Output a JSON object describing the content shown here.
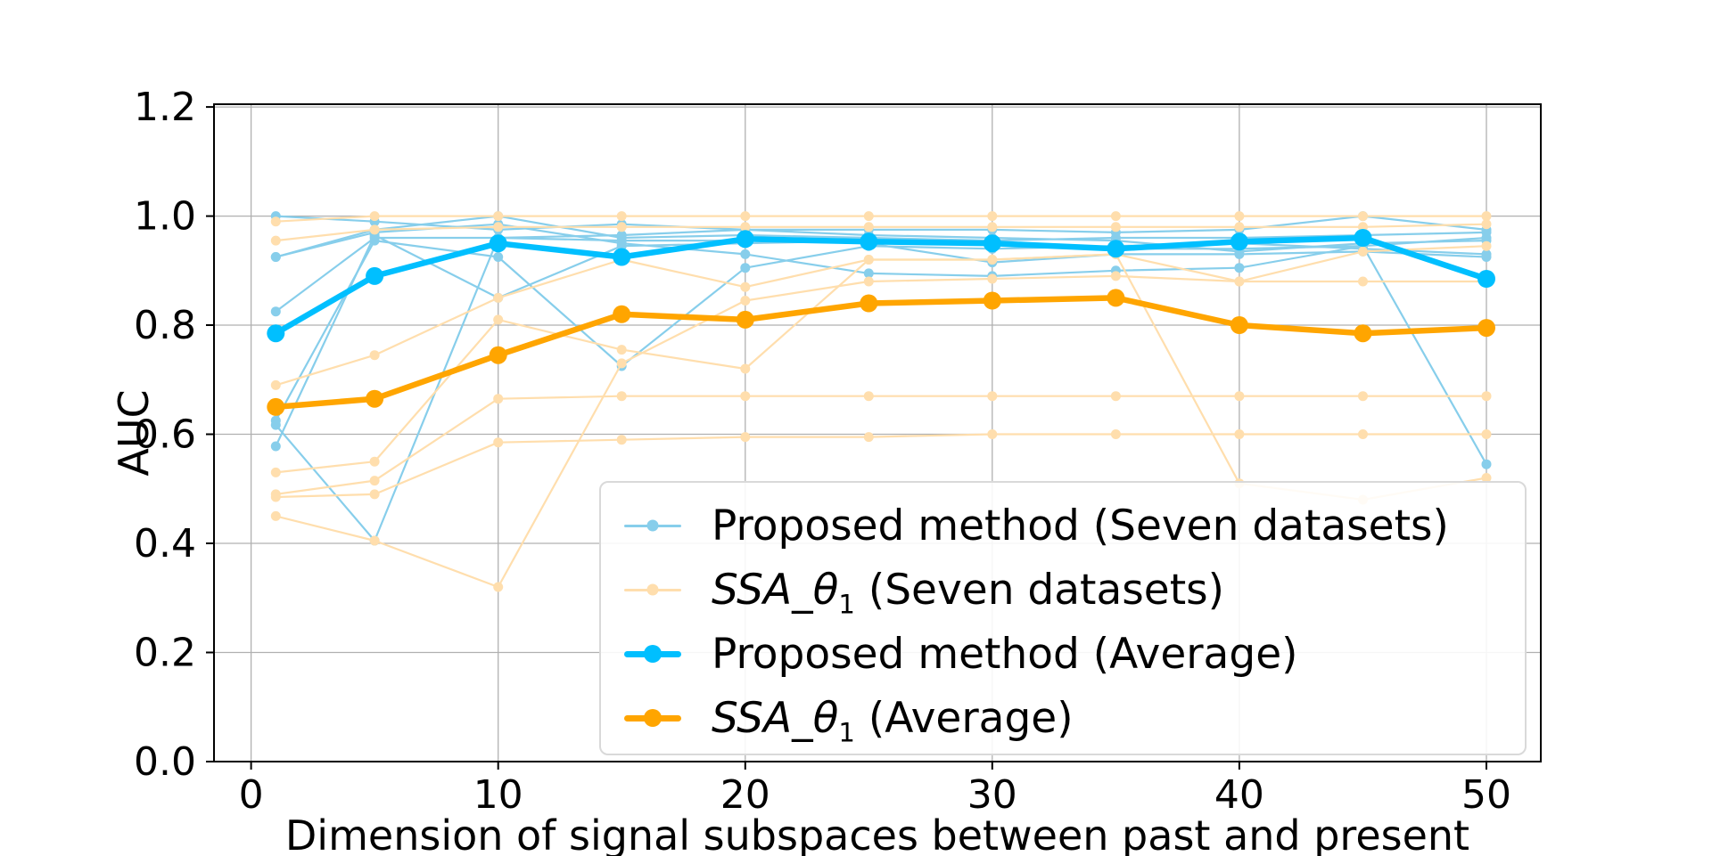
{
  "chart_data": {
    "type": "line",
    "title": "",
    "xlabel": "Dimension of signal subspaces between past and present",
    "ylabel": "AUC",
    "x": [
      1,
      5,
      10,
      15,
      20,
      25,
      30,
      35,
      40,
      45,
      50
    ],
    "xlim": [
      -1.5,
      52.2
    ],
    "ylim": [
      0,
      1.205
    ],
    "xticks": {
      "values": [
        0,
        10,
        20,
        30,
        40,
        50
      ],
      "labels": [
        "0",
        "10",
        "20",
        "30",
        "40",
        "50"
      ]
    },
    "yticks": {
      "values": [
        0.0,
        0.2,
        0.4,
        0.6,
        0.8,
        1.0,
        1.2
      ],
      "labels": [
        "0.0",
        "0.2",
        "0.4",
        "0.6",
        "0.8",
        "1.0",
        "1.2"
      ]
    },
    "grid": true,
    "legend_position": "lower right",
    "colors": {
      "proposed_individual": "#87CEEB",
      "ssa_individual": "#FFDEAD",
      "proposed_average": "#00BFFF",
      "ssa_average": "#FFA500",
      "grid": "#b0b0b0",
      "axis": "#000000"
    },
    "series": [
      {
        "name": "Proposed method (dataset 1)",
        "group": "proposed-individual",
        "color": "#87CEEB",
        "line_width": 2.2,
        "marker_radius": 5.5,
        "values": [
          1.0,
          0.99,
          0.975,
          0.985,
          0.975,
          0.975,
          0.975,
          0.97,
          0.975,
          1.0,
          0.975
        ]
      },
      {
        "name": "Proposed method (dataset 2)",
        "group": "proposed-individual",
        "color": "#87CEEB",
        "line_width": 2.2,
        "marker_radius": 5.5,
        "values": [
          0.925,
          0.975,
          1.0,
          0.96,
          0.965,
          0.96,
          0.955,
          0.96,
          0.96,
          0.965,
          0.97
        ]
      },
      {
        "name": "Proposed method (dataset 3)",
        "group": "proposed-individual",
        "color": "#87CEEB",
        "line_width": 2.2,
        "marker_radius": 5.5,
        "values": [
          0.925,
          0.97,
          0.985,
          0.95,
          0.93,
          0.895,
          0.89,
          0.9,
          0.905,
          0.945,
          0.96
        ]
      },
      {
        "name": "Proposed method (dataset 4)",
        "group": "proposed-individual",
        "color": "#87CEEB",
        "line_width": 2.2,
        "marker_radius": 5.5,
        "values": [
          0.825,
          0.96,
          0.96,
          0.965,
          0.975,
          0.965,
          0.96,
          0.955,
          0.935,
          0.95,
          0.955
        ]
      },
      {
        "name": "Proposed method (dataset 5)",
        "group": "proposed-individual",
        "color": "#87CEEB",
        "line_width": 2.2,
        "marker_radius": 5.5,
        "values": [
          0.625,
          0.955,
          0.925,
          0.725,
          0.905,
          0.945,
          0.94,
          0.945,
          0.95,
          0.94,
          0.93
        ]
      },
      {
        "name": "Proposed method (dataset 6)",
        "group": "proposed-individual",
        "color": "#87CEEB",
        "line_width": 2.2,
        "marker_radius": 5.5,
        "values": [
          0.617,
          0.405,
          0.96,
          0.955,
          0.955,
          0.95,
          0.915,
          0.93,
          0.93,
          0.935,
          0.925
        ]
      },
      {
        "name": "Proposed method (dataset 7)",
        "group": "proposed-individual",
        "color": "#87CEEB",
        "line_width": 2.2,
        "marker_radius": 5.5,
        "values": [
          0.578,
          0.965,
          0.85,
          0.945,
          0.95,
          0.955,
          0.95,
          0.94,
          0.94,
          0.945,
          0.545
        ]
      },
      {
        "name": "SSA_θ1 (dataset 1)",
        "group": "ssa-individual",
        "color": "#FFDEAD",
        "line_width": 2.2,
        "marker_radius": 5.5,
        "values": [
          0.99,
          1.0,
          1.0,
          1.0,
          1.0,
          1.0,
          1.0,
          1.0,
          1.0,
          1.0,
          1.0
        ]
      },
      {
        "name": "SSA_θ1 (dataset 2)",
        "group": "ssa-individual",
        "color": "#FFDEAD",
        "line_width": 2.2,
        "marker_radius": 5.5,
        "values": [
          0.955,
          0.975,
          0.98,
          0.98,
          0.98,
          0.98,
          0.98,
          0.98,
          0.98,
          0.98,
          0.985
        ]
      },
      {
        "name": "SSA_θ1 (dataset 3)",
        "group": "ssa-individual",
        "color": "#FFDEAD",
        "line_width": 2.2,
        "marker_radius": 5.5,
        "values": [
          0.69,
          0.745,
          0.85,
          0.92,
          0.87,
          0.92,
          0.92,
          0.93,
          0.88,
          0.935,
          0.945
        ]
      },
      {
        "name": "SSA_θ1 (dataset 4)",
        "group": "ssa-individual",
        "color": "#FFDEAD",
        "line_width": 2.2,
        "marker_radius": 5.5,
        "values": [
          0.53,
          0.55,
          0.81,
          0.755,
          0.72,
          0.92,
          0.92,
          0.93,
          0.51,
          0.48,
          0.52
        ]
      },
      {
        "name": "SSA_θ1 (dataset 5)",
        "group": "ssa-individual",
        "color": "#FFDEAD",
        "line_width": 2.2,
        "marker_radius": 5.5,
        "values": [
          0.49,
          0.515,
          0.665,
          0.67,
          0.67,
          0.67,
          0.67,
          0.67,
          0.67,
          0.67,
          0.67
        ]
      },
      {
        "name": "SSA_θ1 (dataset 6)",
        "group": "ssa-individual",
        "color": "#FFDEAD",
        "line_width": 2.2,
        "marker_radius": 5.5,
        "values": [
          0.485,
          0.49,
          0.585,
          0.59,
          0.595,
          0.595,
          0.6,
          0.6,
          0.6,
          0.6,
          0.6
        ]
      },
      {
        "name": "SSA_θ1 (dataset 7)",
        "group": "ssa-individual",
        "color": "#FFDEAD",
        "line_width": 2.2,
        "marker_radius": 5.5,
        "values": [
          0.45,
          0.405,
          0.32,
          0.73,
          0.845,
          0.88,
          0.885,
          0.89,
          0.88,
          0.88,
          0.88
        ]
      },
      {
        "name": "Proposed method (Average)",
        "group": "proposed-average",
        "color": "#00BFFF",
        "line_width": 6.5,
        "marker_radius": 10,
        "values": [
          0.785,
          0.89,
          0.95,
          0.925,
          0.958,
          0.953,
          0.95,
          0.94,
          0.953,
          0.96,
          0.885
        ]
      },
      {
        "name": "SSA_θ1 (Average)",
        "group": "ssa-average",
        "color": "#FFA500",
        "line_width": 6.5,
        "marker_radius": 10,
        "values": [
          0.65,
          0.665,
          0.745,
          0.82,
          0.81,
          0.84,
          0.845,
          0.85,
          0.8,
          0.785,
          0.795
        ]
      }
    ],
    "legend": {
      "entries": [
        {
          "math": "",
          "sub": "",
          "text": "Proposed method (Seven datasets)",
          "color": "#87CEEB",
          "bold": false
        },
        {
          "math": "SSA_θ",
          "sub": "1",
          "text": " (Seven datasets)",
          "color": "#FFDEAD",
          "bold": false
        },
        {
          "math": "",
          "sub": "",
          "text": "Proposed method (Average)",
          "color": "#00BFFF",
          "bold": true
        },
        {
          "math": "SSA_θ",
          "sub": "1",
          "text": " (Average)",
          "color": "#FFA500",
          "bold": true
        }
      ]
    }
  }
}
